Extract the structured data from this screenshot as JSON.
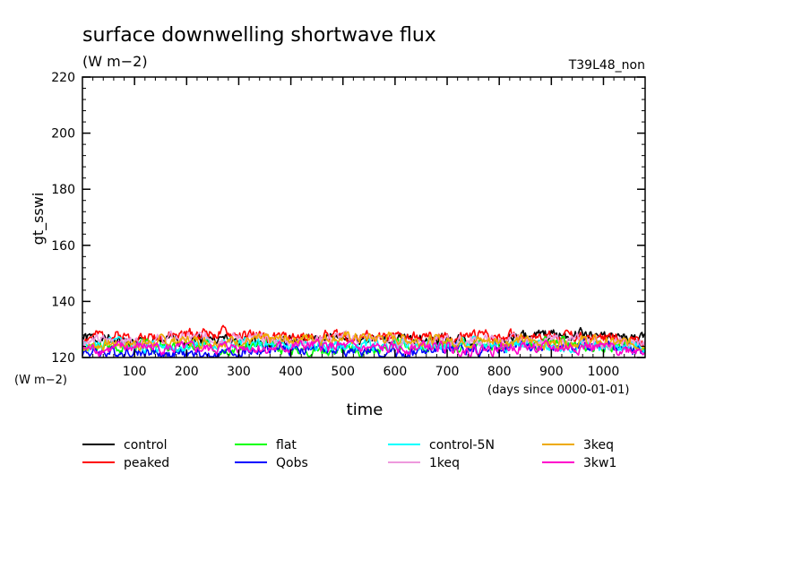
{
  "chart_data": {
    "type": "line",
    "title": "surface downwelling shortwave flux",
    "subtitle": "(W m−2)",
    "run_label": "T39L48_non",
    "xlabel": "time",
    "x_units": "(days since 0000-01-01)",
    "ylabel": "gt_sswi",
    "y_units": "(W m−2)",
    "xlim": [
      0,
      1080
    ],
    "ylim": [
      120,
      220
    ],
    "x_ticks": [
      100,
      200,
      300,
      400,
      500,
      600,
      700,
      800,
      900,
      1000
    ],
    "y_ticks": [
      120,
      140,
      160,
      180,
      200,
      220
    ],
    "grid": false,
    "legend_position": "bottom",
    "series": [
      {
        "name": "control",
        "color": "#000000",
        "x": [
          0,
          60,
          120,
          180,
          240,
          300,
          360,
          420,
          480,
          540,
          600,
          660,
          720,
          780,
          840,
          900,
          960,
          1020,
          1080
        ],
        "values": [
          127,
          126,
          125,
          126,
          127,
          126,
          125,
          126,
          127,
          127,
          126,
          127,
          126,
          126,
          127,
          128,
          128,
          127,
          126
        ]
      },
      {
        "name": "peaked",
        "color": "#ff0000",
        "x": [
          0,
          60,
          120,
          180,
          240,
          300,
          360,
          420,
          480,
          540,
          600,
          660,
          720,
          780,
          840,
          900,
          960,
          1020,
          1080
        ],
        "values": [
          127,
          128,
          127,
          128,
          129,
          128,
          127,
          127,
          128,
          127,
          127,
          127,
          127,
          128,
          128,
          128,
          127,
          127,
          126
        ]
      },
      {
        "name": "flat",
        "color": "#00ff00",
        "x": [
          0,
          60,
          120,
          180,
          240,
          300,
          360,
          420,
          480,
          540,
          600,
          660,
          720,
          780,
          840,
          900,
          960,
          1020,
          1080
        ],
        "values": [
          123,
          124,
          124,
          123,
          124,
          124,
          124,
          123,
          123,
          122,
          124,
          124,
          124,
          125,
          124,
          125,
          124,
          124,
          123
        ]
      },
      {
        "name": "Qobs",
        "color": "#0000ff",
        "x": [
          0,
          60,
          120,
          180,
          240,
          300,
          360,
          420,
          480,
          540,
          600,
          660,
          720,
          780,
          840,
          900,
          960,
          1020,
          1080
        ],
        "values": [
          122,
          122,
          122,
          121,
          121,
          122,
          123,
          123,
          123,
          122,
          121,
          122,
          123,
          123,
          124,
          124,
          124,
          123,
          123
        ]
      },
      {
        "name": "control-5N",
        "color": "#00ffff",
        "x": [
          0,
          60,
          120,
          180,
          240,
          300,
          360,
          420,
          480,
          540,
          600,
          660,
          720,
          780,
          840,
          900,
          960,
          1020,
          1080
        ],
        "values": [
          124,
          125,
          124,
          124,
          125,
          125,
          124,
          124,
          124,
          124,
          125,
          124,
          125,
          125,
          125,
          124,
          124,
          124,
          124
        ]
      },
      {
        "name": "1keq",
        "color": "#ee99dd",
        "x": [
          0,
          60,
          120,
          180,
          240,
          300,
          360,
          420,
          480,
          540,
          600,
          660,
          720,
          780,
          840,
          900,
          960,
          1020,
          1080
        ],
        "values": [
          126,
          126,
          126,
          127,
          127,
          127,
          126,
          126,
          127,
          127,
          126,
          126,
          126,
          126,
          126,
          126,
          126,
          125,
          125
        ]
      },
      {
        "name": "3keq",
        "color": "#eeaa00",
        "x": [
          0,
          60,
          120,
          180,
          240,
          300,
          360,
          420,
          480,
          540,
          600,
          660,
          720,
          780,
          840,
          900,
          960,
          1020,
          1080
        ],
        "values": [
          124,
          125,
          125,
          126,
          126,
          126,
          126,
          127,
          127,
          127,
          127,
          126,
          126,
          126,
          126,
          125,
          126,
          125,
          125
        ]
      },
      {
        "name": "3kw1",
        "color": "#ff00cc",
        "x": [
          0,
          60,
          120,
          180,
          240,
          300,
          360,
          420,
          480,
          540,
          600,
          660,
          720,
          780,
          840,
          900,
          960,
          1020,
          1080
        ],
        "values": [
          123,
          123,
          124,
          123,
          123,
          124,
          123,
          124,
          124,
          123,
          123,
          124,
          123,
          123,
          124,
          123,
          124,
          123,
          123
        ]
      }
    ]
  }
}
